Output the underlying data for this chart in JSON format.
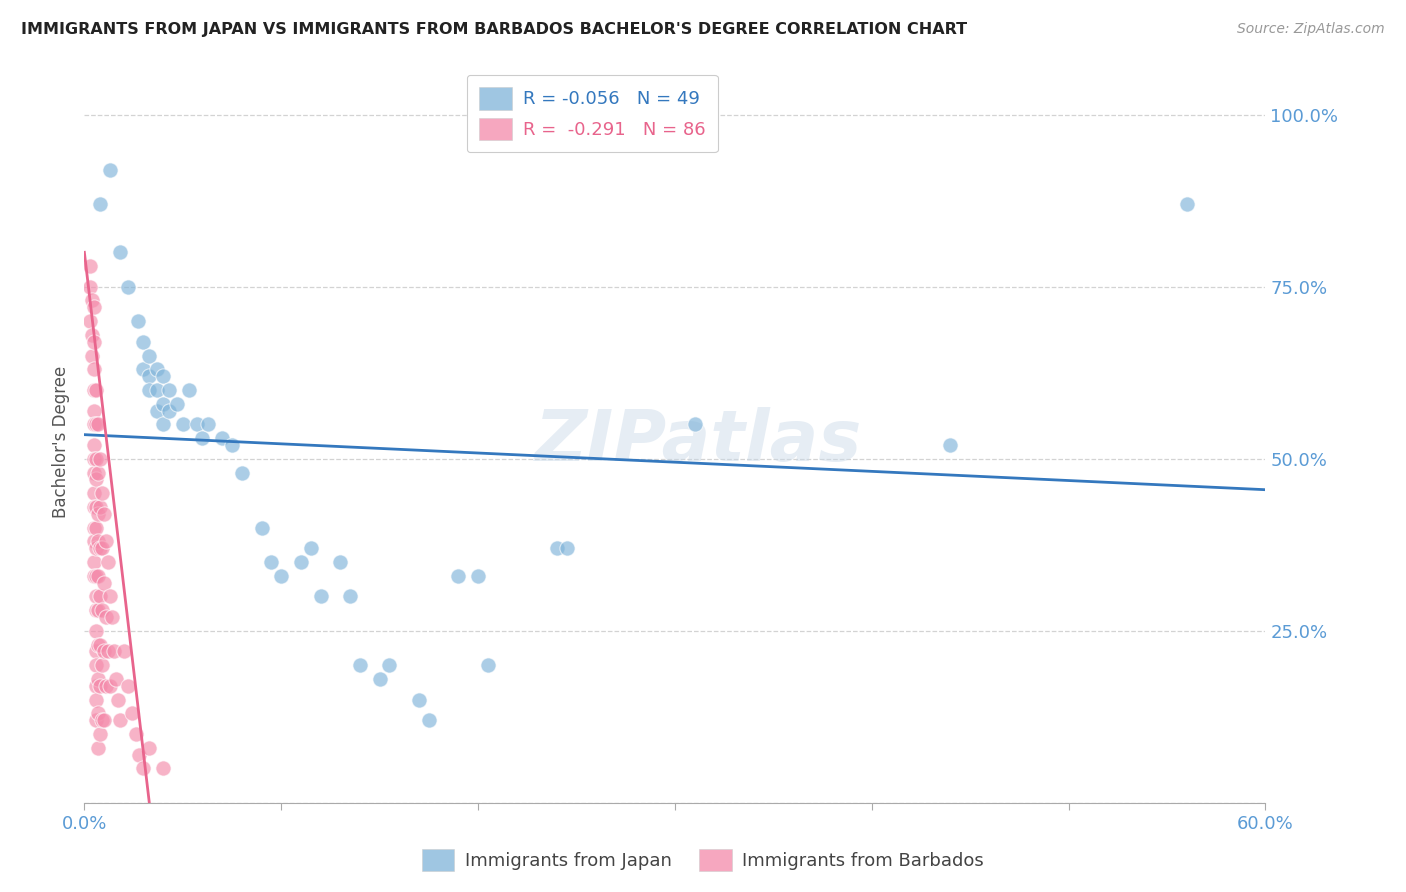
{
  "title": "IMMIGRANTS FROM JAPAN VS IMMIGRANTS FROM BARBADOS BACHELOR'S DEGREE CORRELATION CHART",
  "source": "Source: ZipAtlas.com",
  "ylabel": "Bachelor's Degree",
  "watermark": "ZIPatlas",
  "legend_japan_R": "-0.056",
  "legend_japan_N": "49",
  "legend_barbados_R": "-0.291",
  "legend_barbados_N": "86",
  "japan_scatter": [
    [
      0.008,
      0.87
    ],
    [
      0.013,
      0.92
    ],
    [
      0.018,
      0.8
    ],
    [
      0.022,
      0.75
    ],
    [
      0.027,
      0.7
    ],
    [
      0.03,
      0.67
    ],
    [
      0.03,
      0.63
    ],
    [
      0.033,
      0.65
    ],
    [
      0.033,
      0.62
    ],
    [
      0.033,
      0.6
    ],
    [
      0.037,
      0.63
    ],
    [
      0.037,
      0.6
    ],
    [
      0.037,
      0.57
    ],
    [
      0.04,
      0.62
    ],
    [
      0.04,
      0.58
    ],
    [
      0.04,
      0.55
    ],
    [
      0.043,
      0.6
    ],
    [
      0.043,
      0.57
    ],
    [
      0.047,
      0.58
    ],
    [
      0.05,
      0.55
    ],
    [
      0.053,
      0.6
    ],
    [
      0.057,
      0.55
    ],
    [
      0.06,
      0.53
    ],
    [
      0.063,
      0.55
    ],
    [
      0.07,
      0.53
    ],
    [
      0.075,
      0.52
    ],
    [
      0.08,
      0.48
    ],
    [
      0.09,
      0.4
    ],
    [
      0.095,
      0.35
    ],
    [
      0.1,
      0.33
    ],
    [
      0.11,
      0.35
    ],
    [
      0.115,
      0.37
    ],
    [
      0.12,
      0.3
    ],
    [
      0.13,
      0.35
    ],
    [
      0.135,
      0.3
    ],
    [
      0.14,
      0.2
    ],
    [
      0.15,
      0.18
    ],
    [
      0.155,
      0.2
    ],
    [
      0.17,
      0.15
    ],
    [
      0.175,
      0.12
    ],
    [
      0.19,
      0.33
    ],
    [
      0.2,
      0.33
    ],
    [
      0.205,
      0.2
    ],
    [
      0.24,
      0.37
    ],
    [
      0.245,
      0.37
    ],
    [
      0.31,
      0.55
    ],
    [
      0.44,
      0.52
    ],
    [
      0.56,
      0.87
    ]
  ],
  "barbados_scatter": [
    [
      0.003,
      0.78
    ],
    [
      0.003,
      0.75
    ],
    [
      0.003,
      0.7
    ],
    [
      0.004,
      0.73
    ],
    [
      0.004,
      0.68
    ],
    [
      0.004,
      0.65
    ],
    [
      0.005,
      0.72
    ],
    [
      0.005,
      0.67
    ],
    [
      0.005,
      0.63
    ],
    [
      0.005,
      0.6
    ],
    [
      0.005,
      0.57
    ],
    [
      0.005,
      0.55
    ],
    [
      0.005,
      0.52
    ],
    [
      0.005,
      0.5
    ],
    [
      0.005,
      0.48
    ],
    [
      0.005,
      0.45
    ],
    [
      0.005,
      0.43
    ],
    [
      0.005,
      0.4
    ],
    [
      0.005,
      0.38
    ],
    [
      0.005,
      0.35
    ],
    [
      0.005,
      0.33
    ],
    [
      0.006,
      0.6
    ],
    [
      0.006,
      0.55
    ],
    [
      0.006,
      0.5
    ],
    [
      0.006,
      0.47
    ],
    [
      0.006,
      0.43
    ],
    [
      0.006,
      0.4
    ],
    [
      0.006,
      0.37
    ],
    [
      0.006,
      0.33
    ],
    [
      0.006,
      0.3
    ],
    [
      0.006,
      0.28
    ],
    [
      0.006,
      0.25
    ],
    [
      0.006,
      0.22
    ],
    [
      0.006,
      0.2
    ],
    [
      0.006,
      0.17
    ],
    [
      0.006,
      0.15
    ],
    [
      0.006,
      0.12
    ],
    [
      0.007,
      0.55
    ],
    [
      0.007,
      0.48
    ],
    [
      0.007,
      0.42
    ],
    [
      0.007,
      0.38
    ],
    [
      0.007,
      0.33
    ],
    [
      0.007,
      0.28
    ],
    [
      0.007,
      0.23
    ],
    [
      0.007,
      0.18
    ],
    [
      0.007,
      0.13
    ],
    [
      0.007,
      0.08
    ],
    [
      0.008,
      0.5
    ],
    [
      0.008,
      0.43
    ],
    [
      0.008,
      0.37
    ],
    [
      0.008,
      0.3
    ],
    [
      0.008,
      0.23
    ],
    [
      0.008,
      0.17
    ],
    [
      0.008,
      0.1
    ],
    [
      0.009,
      0.45
    ],
    [
      0.009,
      0.37
    ],
    [
      0.009,
      0.28
    ],
    [
      0.009,
      0.2
    ],
    [
      0.009,
      0.12
    ],
    [
      0.01,
      0.42
    ],
    [
      0.01,
      0.32
    ],
    [
      0.01,
      0.22
    ],
    [
      0.01,
      0.12
    ],
    [
      0.011,
      0.38
    ],
    [
      0.011,
      0.27
    ],
    [
      0.011,
      0.17
    ],
    [
      0.012,
      0.35
    ],
    [
      0.012,
      0.22
    ],
    [
      0.013,
      0.3
    ],
    [
      0.013,
      0.17
    ],
    [
      0.014,
      0.27
    ],
    [
      0.015,
      0.22
    ],
    [
      0.016,
      0.18
    ],
    [
      0.017,
      0.15
    ],
    [
      0.018,
      0.12
    ],
    [
      0.02,
      0.22
    ],
    [
      0.022,
      0.17
    ],
    [
      0.024,
      0.13
    ],
    [
      0.026,
      0.1
    ],
    [
      0.028,
      0.07
    ],
    [
      0.03,
      0.05
    ],
    [
      0.033,
      0.08
    ],
    [
      0.04,
      0.05
    ]
  ],
  "japan_line": {
    "x0": 0.0,
    "y0": 0.535,
    "x1": 0.6,
    "y1": 0.455
  },
  "barbados_line": {
    "x0": 0.0,
    "y0": 0.8,
    "x1": 0.033,
    "y1": 0.0
  },
  "japan_color": "#7fb3d9",
  "barbados_color": "#f48aaa",
  "japan_line_color": "#3478be",
  "barbados_line_color": "#e8648c",
  "ytick_positions": [
    0.0,
    0.25,
    0.5,
    0.75,
    1.0
  ],
  "ytick_labels": [
    "",
    "25.0%",
    "50.0%",
    "75.0%",
    "100.0%"
  ],
  "xlim": [
    0.0,
    0.6
  ],
  "ylim": [
    0.0,
    1.05
  ],
  "xtick_positions": [
    0.0,
    0.1,
    0.2,
    0.3,
    0.4,
    0.5,
    0.6
  ],
  "xtick_labels": [
    "0.0%",
    "",
    "",
    "",
    "",
    "",
    "60.0%"
  ]
}
